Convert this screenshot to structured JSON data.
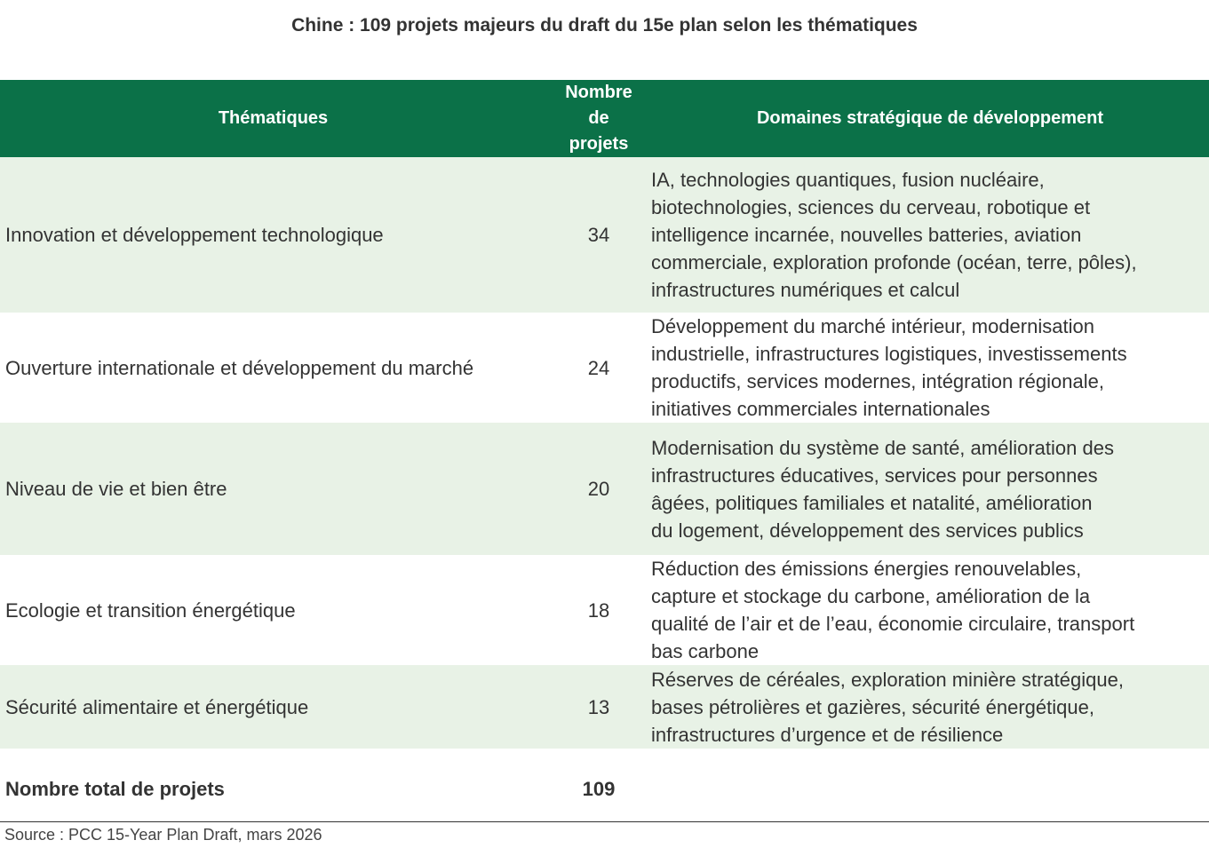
{
  "header": {
    "title": "Chine : 109 projets majeurs du draft du 15e plan selon les thématiques"
  },
  "table": {
    "columns": [
      "Thématiques",
      "Nombre de projets",
      "Domaines stratégique de développement"
    ],
    "rows": [
      {
        "theme": "Innovation et développement technologique",
        "count": 34,
        "domains": [
          "IA, technologies quantiques, fusion nucléaire,",
          "biotechnologies, sciences du cerveau, robotique et",
          "intelligence incarnée, nouvelles batteries, aviation",
          "commerciale, exploration profonde (océan, terre, pôles),",
          "infrastructures numériques et calcul"
        ]
      },
      {
        "theme": "Ouverture internationale et développement du marché",
        "count": 24,
        "domains": [
          "Développement du marché intérieur, modernisation",
          "industrielle, infrastructures logistiques, investissements",
          "productifs, services modernes, intégration régionale,",
          "initiatives commerciales internationales"
        ]
      },
      {
        "theme": "Niveau de vie et bien être",
        "count": 20,
        "domains": [
          "Modernisation du système de santé, amélioration des",
          "infrastructures éducatives, services pour personnes",
          "âgées, politiques familiales et natalité, amélioration",
          "du logement, développement des services publics"
        ]
      },
      {
        "theme": "Ecologie et transition énergétique",
        "count": 18,
        "domains": [
          "Réduction des émissions énergies renouvelables,",
          "capture et stockage du carbone, amélioration de la",
          "qualité de l’air et de l’eau, économie circulaire, transport",
          "bas carbone"
        ]
      },
      {
        "theme": "Sécurité alimentaire et énergétique",
        "count": 13,
        "domains": [
          "Réserves de céréales, exploration minière stratégique,",
          "bases pétrolières et gazières, sécurité énergétique,",
          "infrastructures d’urgence et de résilience"
        ]
      }
    ],
    "total": {
      "label": "Nombre total de projets",
      "value": 109
    }
  },
  "source": "Source : PCC 15-Year Plan Draft, mars 2026"
}
